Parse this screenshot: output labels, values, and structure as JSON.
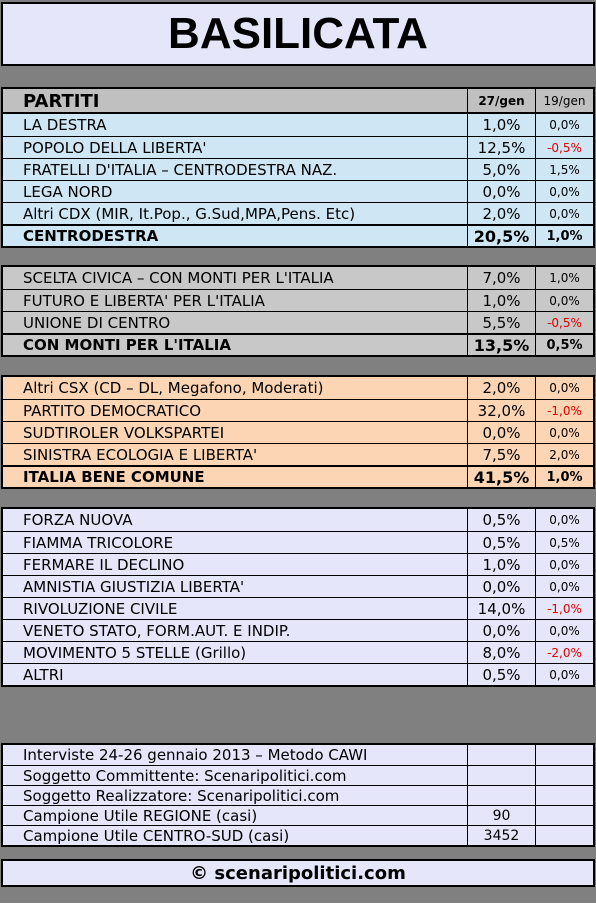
{
  "title": "BASILICATA",
  "header": [
    "PARTITI",
    "27/gen",
    "19/gen"
  ],
  "groups": [
    {
      "color": "#cfe7f5",
      "rows": [
        [
          "LA DESTRA",
          "1,0%",
          "0,0%"
        ],
        [
          "POPOLO DELLA LIBERTA'",
          "12,5%",
          "-0,5%"
        ],
        [
          "FRATELLI D'ITALIA – CENTRODESTRA NAZ.",
          "5,0%",
          "1,5%"
        ],
        [
          "LEGA NORD",
          "0,0%",
          "0,0%"
        ],
        [
          "Altri CDX (MIR, It.Pop., G.Sud,MPA,Pens. Etc)",
          "2,0%",
          "0,0%"
        ]
      ],
      "total": [
        "CENTRODESTRA",
        "20,5%",
        "1,0%"
      ]
    },
    {
      "color": "#c8c8c8",
      "rows": [
        [
          "SCELTA CIVICA – CON MONTI PER L'ITALIA",
          "7,0%",
          "1,0%"
        ],
        [
          "FUTURO E LIBERTA' PER L'ITALIA",
          "1,0%",
          "0,0%"
        ],
        [
          "UNIONE DI CENTRO",
          "5,5%",
          "-0,5%"
        ]
      ],
      "total": [
        "CON MONTI PER L'ITALIA",
        "13,5%",
        "0,5%"
      ]
    },
    {
      "color": "#fcd5b4",
      "rows": [
        [
          "Altri CSX (CD – DL, Megafono, Moderati)",
          "2,0%",
          "0,0%"
        ],
        [
          "PARTITO DEMOCRATICO",
          "32,0%",
          "-1,0%"
        ],
        [
          "SUDTIROLER VOLKSPARTEI",
          "0,0%",
          "0,0%"
        ],
        [
          "SINISTRA ECOLOGIA E LIBERTA'",
          "7,5%",
          "2,0%"
        ]
      ],
      "total": [
        "ITALIA BENE COMUNE",
        "41,5%",
        "1,0%"
      ]
    },
    {
      "color": "#e6e6fa",
      "rows": [
        [
          "FORZA NUOVA",
          "0,5%",
          "0,0%"
        ],
        [
          "FIAMMA TRICOLORE",
          "0,5%",
          "0,5%"
        ],
        [
          "FERMARE IL DECLINO",
          "1,0%",
          "0,0%"
        ],
        [
          "AMNISTIA GIUSTIZIA LIBERTA'",
          "0,0%",
          "0,0%"
        ],
        [
          "RIVOLUZIONE CIVILE",
          "14,0%",
          "-1,0%"
        ],
        [
          "VENETO STATO, FORM.AUT. E INDIP.",
          "0,0%",
          "0,0%"
        ],
        [
          "MOVIMENTO 5 STELLE (Grillo)",
          "8,0%",
          "-2,0%"
        ],
        [
          "ALTRI",
          "0,5%",
          "0,0%"
        ]
      ]
    }
  ],
  "footer": [
    [
      "Interviste 24-26 gennaio 2013 – Metodo CAWI"
    ],
    [
      "Soggetto Committente: Scenaripolitici.com"
    ],
    [
      "Soggetto Realizzatore: Scenaripolitici.com"
    ],
    [
      "Campione Utile REGIONE (casi)",
      90
    ],
    [
      "Campione Utile CENTRO-SUD (casi)",
      3452
    ]
  ],
  "credit": "© scenaripolitici.com"
}
